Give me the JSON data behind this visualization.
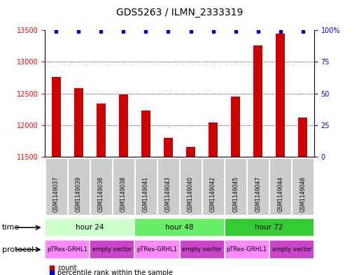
{
  "title": "GDS5263 / ILMN_2333319",
  "samples": [
    "GSM1149037",
    "GSM1149039",
    "GSM1149036",
    "GSM1149038",
    "GSM1149041",
    "GSM1149043",
    "GSM1149040",
    "GSM1149042",
    "GSM1149045",
    "GSM1149047",
    "GSM1149044",
    "GSM1149046"
  ],
  "counts": [
    12760,
    12580,
    12340,
    12480,
    12230,
    11800,
    11650,
    12040,
    12450,
    13260,
    13450,
    12120
  ],
  "percentile_ranks": [
    99,
    99,
    99,
    99,
    99,
    99,
    99,
    99,
    99,
    99,
    99,
    99
  ],
  "ylim_left": [
    11500,
    13500
  ],
  "ylim_right": [
    0,
    100
  ],
  "yticks_left": [
    11500,
    12000,
    12500,
    13000,
    13500
  ],
  "yticks_right": [
    0,
    25,
    50,
    75,
    100
  ],
  "ytick_right_labels": [
    "0",
    "25",
    "50",
    "75",
    "100%"
  ],
  "time_groups": [
    {
      "label": "hour 24",
      "start": 0,
      "end": 4,
      "color": "#ccffcc"
    },
    {
      "label": "hour 48",
      "start": 4,
      "end": 8,
      "color": "#66ee66"
    },
    {
      "label": "hour 72",
      "start": 8,
      "end": 12,
      "color": "#33cc33"
    }
  ],
  "protocol_groups": [
    {
      "label": "pTRex-GRHL1",
      "start": 0,
      "end": 2,
      "color": "#ff88ff"
    },
    {
      "label": "empty vector",
      "start": 2,
      "end": 4,
      "color": "#cc44cc"
    },
    {
      "label": "pTRex-GRHL1",
      "start": 4,
      "end": 6,
      "color": "#ff88ff"
    },
    {
      "label": "empty vector",
      "start": 6,
      "end": 8,
      "color": "#cc44cc"
    },
    {
      "label": "pTRex-GRHL1",
      "start": 8,
      "end": 10,
      "color": "#ff88ff"
    },
    {
      "label": "empty vector",
      "start": 10,
      "end": 12,
      "color": "#cc44cc"
    }
  ],
  "bar_color": "#cc0000",
  "dot_color": "#0000cc",
  "background_color": "#ffffff",
  "sample_box_color": "#cccccc",
  "time_label": "time",
  "protocol_label": "protocol",
  "legend_count": "count",
  "legend_percentile": "percentile rank within the sample",
  "title_fontsize": 10,
  "bar_width": 0.4
}
